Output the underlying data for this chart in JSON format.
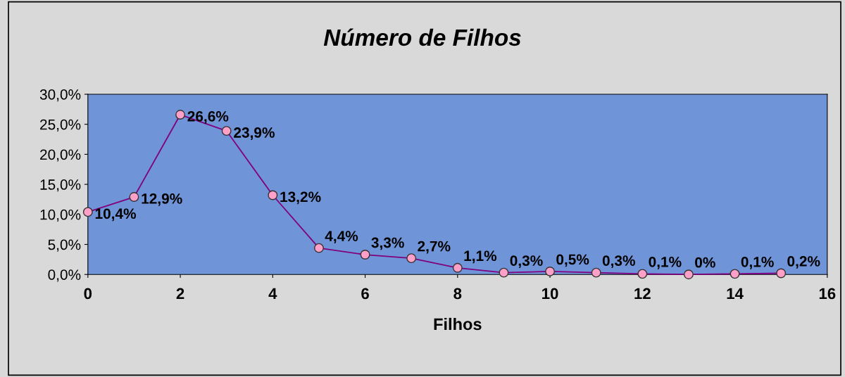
{
  "chart_data": {
    "type": "line",
    "title": "Número de Filhos",
    "xlabel": "Filhos",
    "x": [
      0,
      1,
      2,
      3,
      4,
      5,
      6,
      7,
      8,
      9,
      10,
      11,
      12,
      13,
      14,
      15
    ],
    "series": [
      {
        "color": "#800080",
        "values": [
          10.4,
          12.9,
          26.6,
          23.9,
          13.2,
          4.4,
          3.3,
          2.7,
          1.1,
          0.3,
          0.5,
          0.3,
          0.1,
          0,
          0.1,
          0.2
        ],
        "value_labels": [
          "10,4%",
          "12,9%",
          "26,6%",
          "23,9%",
          "13,2%",
          "4,4%",
          "3,3%",
          "2,7%",
          "1,1%",
          "0,3%",
          "0,5%",
          "0,3%",
          "0,1%",
          "0%",
          "0,1%",
          "0,2%"
        ]
      }
    ],
    "xlim": [
      0,
      16
    ],
    "xticks": [
      0,
      2,
      4,
      6,
      8,
      10,
      12,
      14,
      16
    ],
    "ylim": [
      0,
      30
    ],
    "yticks": [
      {
        "value": 0,
        "label": "0,0%"
      },
      {
        "value": 5,
        "label": "5,0%"
      },
      {
        "value": 10,
        "label": "10,0%"
      },
      {
        "value": 15,
        "label": "15,0%"
      },
      {
        "value": 20,
        "label": "20,0%"
      },
      {
        "value": 25,
        "label": "25,0%"
      },
      {
        "value": 30,
        "label": "30,0%"
      }
    ],
    "marker": "circle",
    "line_style": "solid",
    "grid": false,
    "legend": false
  }
}
